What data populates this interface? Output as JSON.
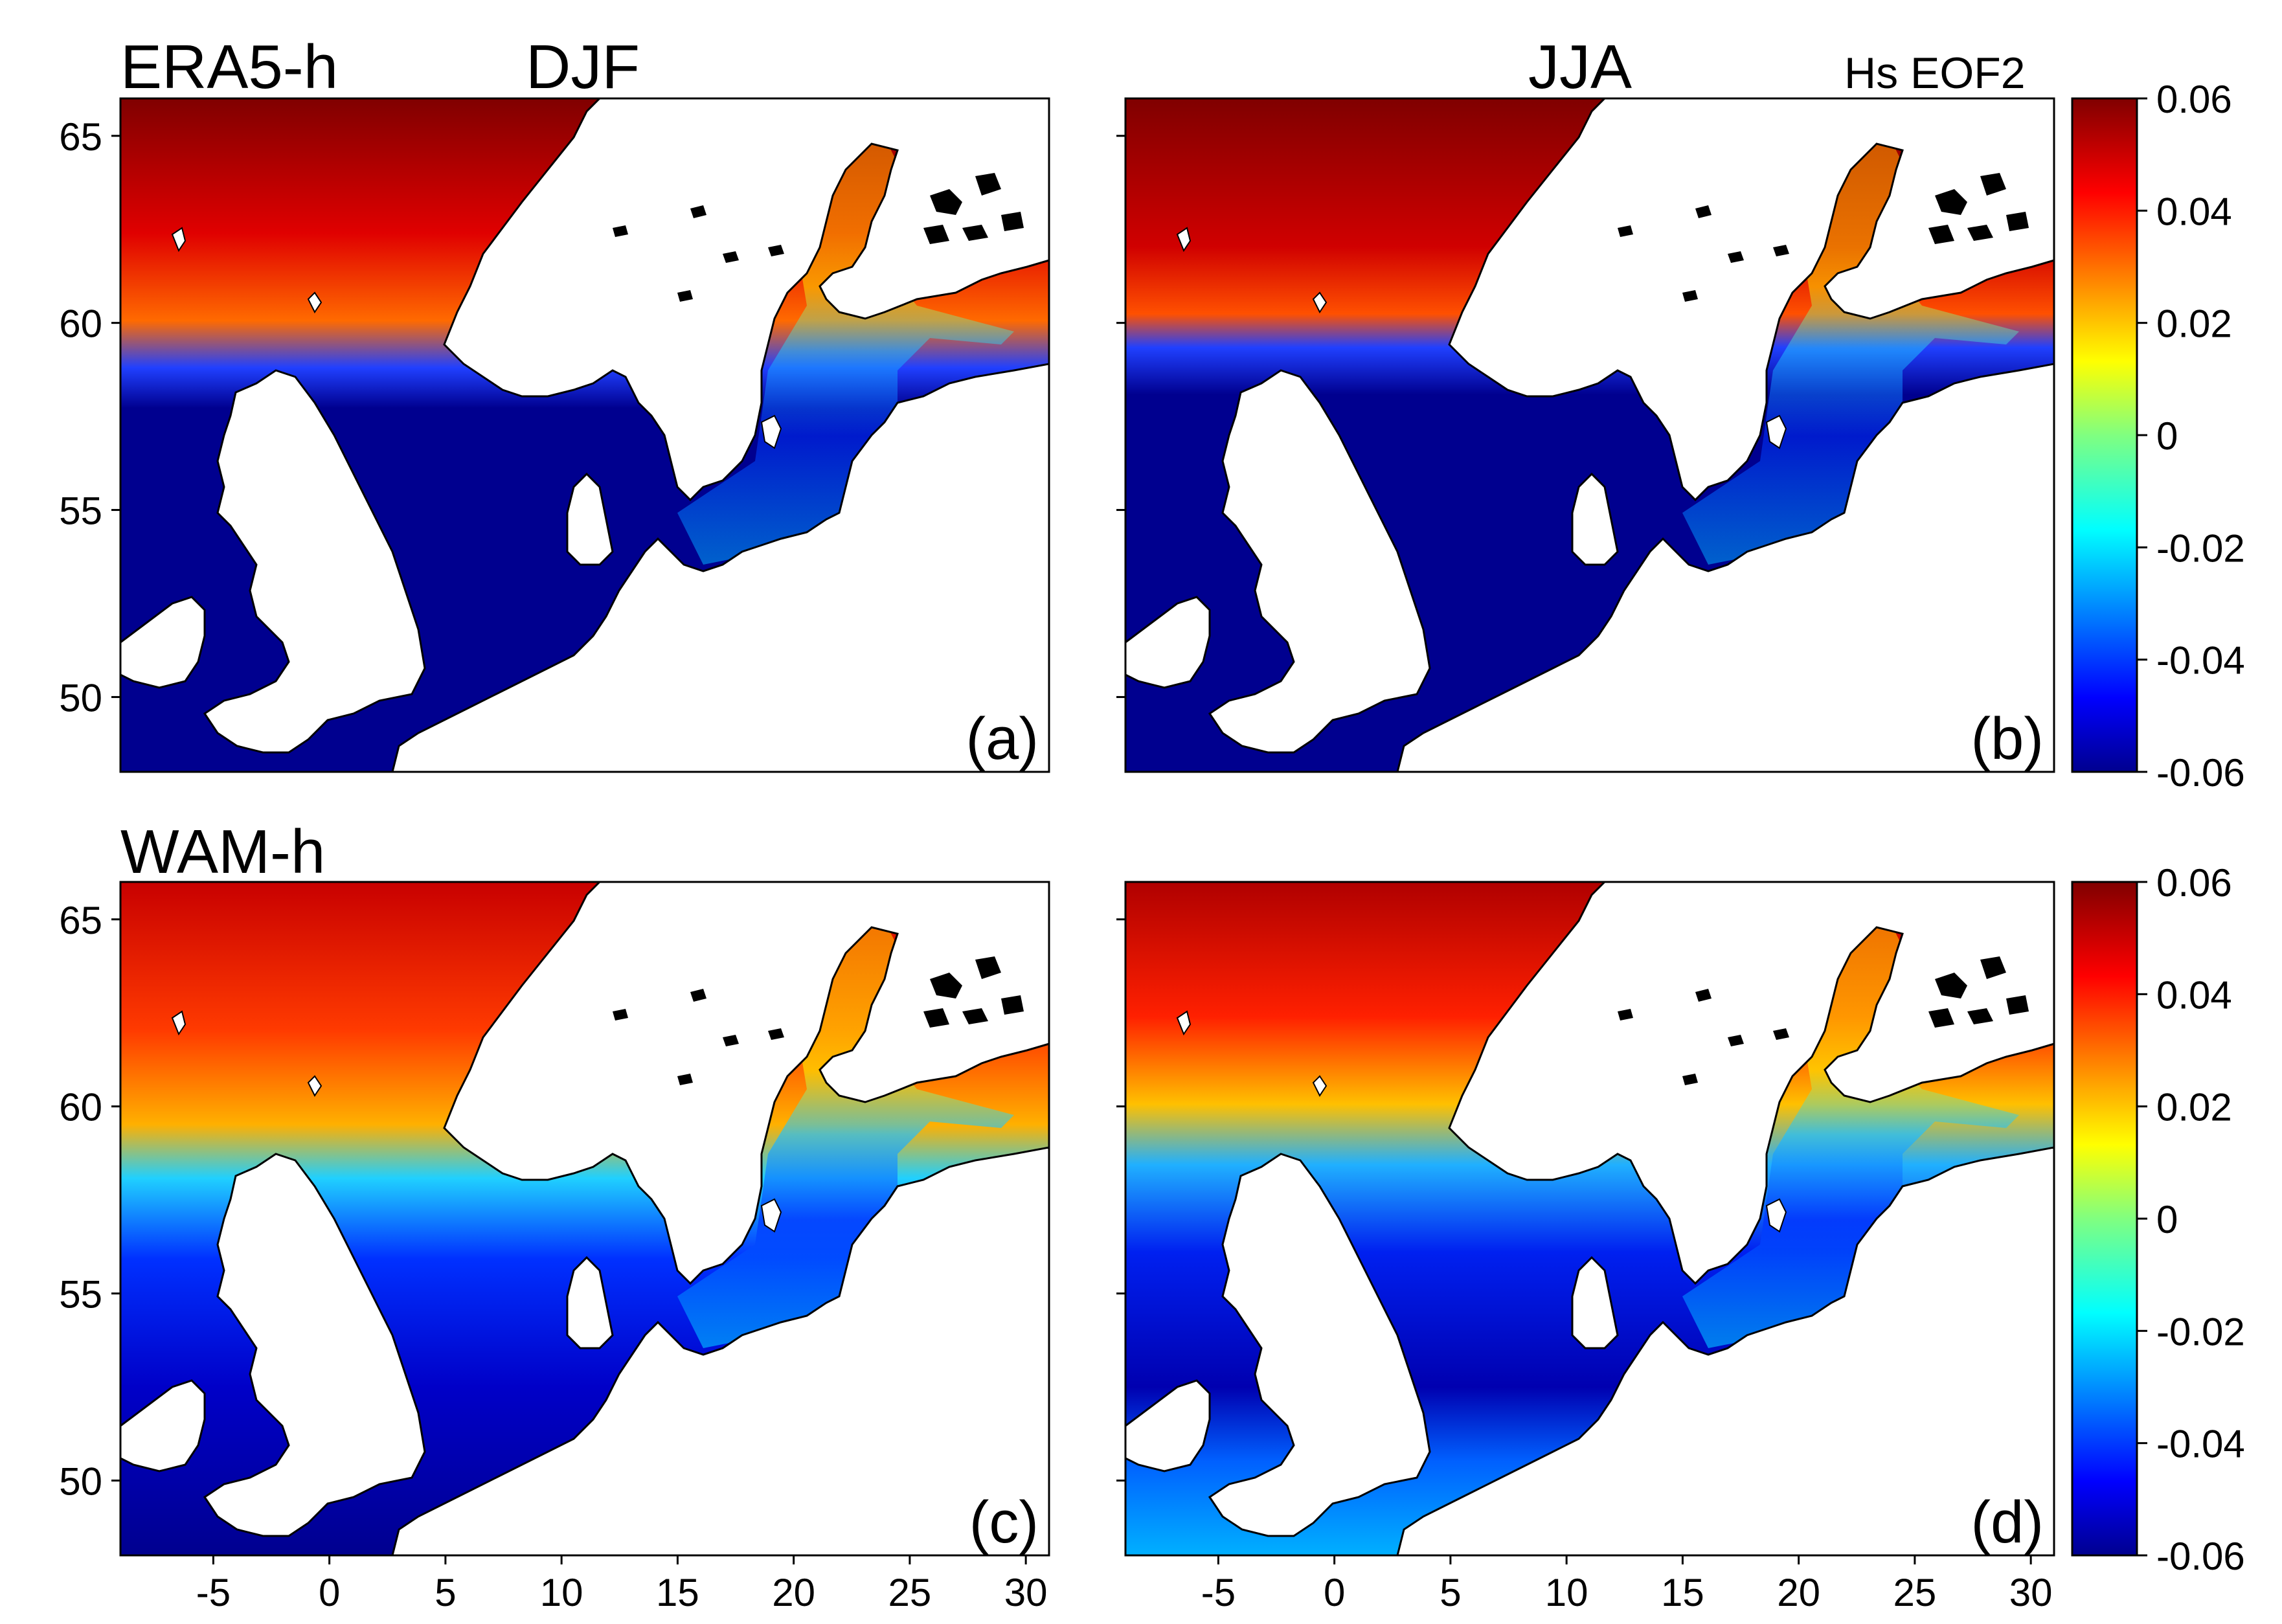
{
  "header": {
    "row1_title": "ERA5-h",
    "row2_title": "WAM-h",
    "col1_title": "DJF",
    "col2_title": "JJA",
    "variable_label": "Hs EOF2"
  },
  "panels": [
    {
      "tag": "(a)",
      "dataset": "ERA5-h",
      "season": "DJF",
      "pattern": "era5_djf"
    },
    {
      "tag": "(b)",
      "dataset": "ERA5-h",
      "season": "JJA",
      "pattern": "era5_jja"
    },
    {
      "tag": "(c)",
      "dataset": "WAM-h",
      "season": "DJF",
      "pattern": "wam_djf"
    },
    {
      "tag": "(d)",
      "dataset": "WAM-h",
      "season": "JJA",
      "pattern": "wam_jja"
    }
  ],
  "axes": {
    "lon_range": [
      -9,
      31
    ],
    "lat_range": [
      48,
      66
    ],
    "x_ticks": [
      "-5",
      "0",
      "5",
      "10",
      "15",
      "20",
      "25",
      "30"
    ],
    "x_tick_values": [
      -5,
      0,
      5,
      10,
      15,
      20,
      25,
      30
    ],
    "y_ticks": [
      "65",
      "60",
      "55",
      "50"
    ],
    "y_tick_values": [
      65,
      60,
      55,
      50
    ]
  },
  "colorbar": {
    "colormap": "jet",
    "range": [
      -0.06,
      0.06
    ],
    "tick_labels": [
      "0.06",
      "0.04",
      "0.02",
      "0",
      "-0.02",
      "-0.04",
      "-0.06"
    ],
    "tick_values": [
      0.06,
      0.04,
      0.02,
      0,
      -0.02,
      -0.04,
      -0.06
    ]
  },
  "colors": {
    "land": "#ffffff",
    "coastline": "#000000",
    "jet_low": "#00008f",
    "jet_high": "#800000"
  }
}
